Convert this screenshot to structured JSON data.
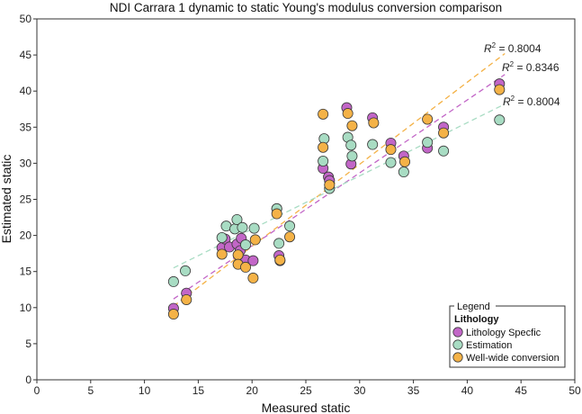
{
  "chart_data": {
    "type": "scatter",
    "title": "NDI Carrara 1 dynamic to static Young's modulus conversion comparison",
    "xlabel": "Measured static",
    "ylabel": "Estimated static",
    "xlim": [
      0,
      50
    ],
    "ylim": [
      0,
      50
    ],
    "xticks": [
      "0",
      "5",
      "10",
      "15",
      "20",
      "25",
      "30",
      "35",
      "40",
      "45",
      "50"
    ],
    "yticks": [
      "0",
      "5",
      "10",
      "15",
      "20",
      "25",
      "30",
      "35",
      "40",
      "45",
      "50"
    ],
    "grid": false,
    "legend": {
      "title": "Legend",
      "group_heading": "Lithology",
      "placement": "bottom-right"
    },
    "series": [
      {
        "name": "Lithology Specfic",
        "color": "#c266c7",
        "points": [
          [
            12.7,
            9.9
          ],
          [
            13.9,
            12.0
          ],
          [
            17.2,
            18.3
          ],
          [
            17.5,
            19.5
          ],
          [
            17.9,
            18.4
          ],
          [
            18.6,
            18.8
          ],
          [
            18.9,
            17.9
          ],
          [
            19.0,
            19.6
          ],
          [
            19.4,
            16.6
          ],
          [
            20.1,
            16.5
          ],
          [
            22.3,
            23.7
          ],
          [
            22.5,
            17.2
          ],
          [
            22.6,
            16.5
          ],
          [
            26.6,
            29.3
          ],
          [
            27.1,
            28.1
          ],
          [
            27.2,
            27.6
          ],
          [
            28.8,
            37.7
          ],
          [
            29.2,
            29.9
          ],
          [
            31.2,
            36.3
          ],
          [
            32.9,
            32.8
          ],
          [
            34.1,
            31.0
          ],
          [
            36.3,
            32.1
          ],
          [
            37.8,
            35.0
          ],
          [
            43.0,
            41.0
          ]
        ]
      },
      {
        "name": "Estimation",
        "color": "#a8dcc3",
        "points": [
          [
            12.7,
            13.6
          ],
          [
            13.8,
            15.1
          ],
          [
            17.2,
            19.7
          ],
          [
            17.6,
            21.3
          ],
          [
            18.4,
            20.9
          ],
          [
            18.6,
            22.2
          ],
          [
            19.1,
            21.1
          ],
          [
            19.4,
            18.7
          ],
          [
            20.2,
            21.0
          ],
          [
            22.3,
            23.7
          ],
          [
            22.5,
            18.9
          ],
          [
            23.5,
            21.3
          ],
          [
            26.6,
            30.3
          ],
          [
            26.7,
            33.4
          ],
          [
            27.2,
            26.5
          ],
          [
            28.9,
            33.6
          ],
          [
            29.2,
            32.5
          ],
          [
            29.3,
            31.0
          ],
          [
            31.2,
            32.6
          ],
          [
            32.9,
            30.1
          ],
          [
            34.1,
            28.8
          ],
          [
            36.3,
            32.9
          ],
          [
            37.8,
            31.7
          ],
          [
            43.0,
            36.0
          ]
        ]
      },
      {
        "name": "Well-wide conversion",
        "color": "#f4b247",
        "points": [
          [
            12.7,
            9.1
          ],
          [
            13.9,
            11.1
          ],
          [
            17.2,
            17.4
          ],
          [
            18.7,
            17.3
          ],
          [
            18.7,
            16.0
          ],
          [
            19.4,
            15.6
          ],
          [
            20.1,
            14.1
          ],
          [
            20.3,
            19.4
          ],
          [
            22.3,
            23.0
          ],
          [
            22.6,
            16.6
          ],
          [
            23.5,
            19.8
          ],
          [
            26.6,
            32.2
          ],
          [
            26.6,
            36.8
          ],
          [
            27.2,
            27.0
          ],
          [
            28.9,
            36.9
          ],
          [
            29.3,
            35.2
          ],
          [
            31.3,
            35.6
          ],
          [
            32.9,
            31.9
          ],
          [
            34.2,
            30.2
          ],
          [
            36.3,
            36.1
          ],
          [
            37.8,
            34.2
          ],
          [
            43.0,
            40.2
          ]
        ]
      }
    ],
    "trendlines": [
      {
        "series": "Well-wide conversion",
        "color": "#f4b247",
        "x": [
          12.7,
          43.5
        ],
        "y": [
          10.2,
          45.2
        ],
        "r2_label": "R2 = 0.8004",
        "r2_super": "2",
        "r2_value": "= 0.8004"
      },
      {
        "series": "Lithology Specfic",
        "color": "#c266c7",
        "x": [
          12.7,
          43.5
        ],
        "y": [
          11.2,
          42.3
        ],
        "r2_label": "R2 = 0.8346",
        "r2_super": "2",
        "r2_value": "= 0.8346"
      },
      {
        "series": "Estimation",
        "color": "#a8dcc3",
        "x": [
          12.7,
          43.5
        ],
        "y": [
          15.5,
          38.2
        ],
        "r2_label": "R2 = 0.8004",
        "r2_super": "2",
        "r2_value": "= 0.8004"
      }
    ]
  }
}
